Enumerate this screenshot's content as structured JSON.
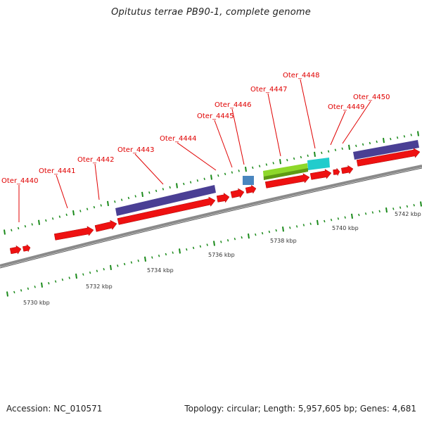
{
  "title": "Opitutus terrae PB90-1, complete genome",
  "footer": {
    "accession": "Accession: NC_010571",
    "info": "Topology: circular; Length: 5,957,605 bp; Genes: 4,681"
  },
  "colors": {
    "cds": "#ee1111",
    "label": "#e00000",
    "backbone": "#8a8a8a",
    "tick": "#1a8a1a",
    "feature_blue": "#4a3f94",
    "feature_lightblue": "#4a86bf",
    "feature_lime": "#8ed82a",
    "feature_cyan": "#22cccc"
  },
  "gene_labels": [
    "Oter_4440",
    "Oter_4441",
    "Oter_4442",
    "Oter_4443",
    "Oter_4444",
    "Oter_4445",
    "Oter_4446",
    "Oter_4447",
    "Oter_4448",
    "Oter_4449",
    "Oter_4450"
  ],
  "kbp_labels": [
    "5730 kbp",
    "5732 kbp",
    "5734 kbp",
    "5736 kbp",
    "5738 kbp",
    "5740 kbp",
    "5742 kbp"
  ]
}
